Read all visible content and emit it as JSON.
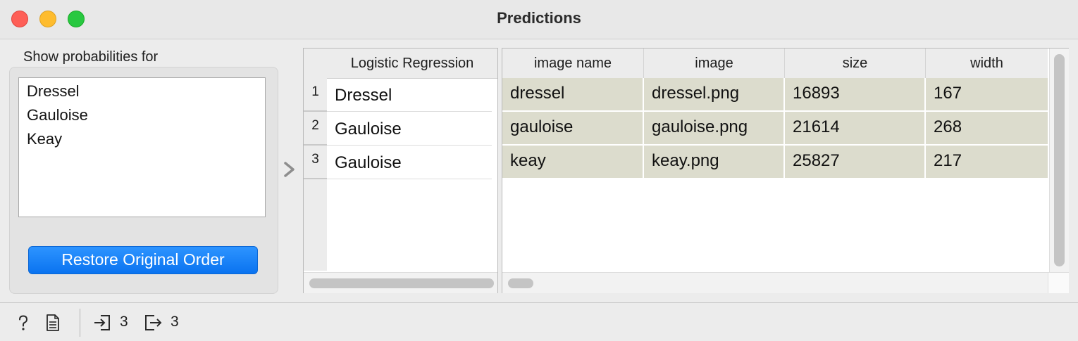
{
  "window": {
    "title": "Predictions"
  },
  "left_panel": {
    "label": "Show probabilities for",
    "classes": [
      "Dressel",
      "Gauloise",
      "Keay"
    ],
    "restore_button": "Restore Original Order"
  },
  "predictions": {
    "header": "Logistic Regression",
    "rows": [
      {
        "index": "1",
        "value": "Dressel"
      },
      {
        "index": "2",
        "value": "Gauloise"
      },
      {
        "index": "3",
        "value": "Gauloise"
      }
    ]
  },
  "data_table": {
    "columns": [
      "image name",
      "image",
      "size",
      "width"
    ],
    "rows": [
      [
        "dressel",
        "dressel.png",
        "16893",
        "167"
      ],
      [
        "gauloise",
        "gauloise.png",
        "21614",
        "268"
      ],
      [
        "keay",
        "keay.png",
        "25827",
        "217"
      ]
    ],
    "row_color": "#dcdccd"
  },
  "status_bar": {
    "input_count": "3",
    "output_count": "3",
    "icons": [
      "help-icon",
      "report-icon",
      "input-icon",
      "output-icon"
    ]
  }
}
